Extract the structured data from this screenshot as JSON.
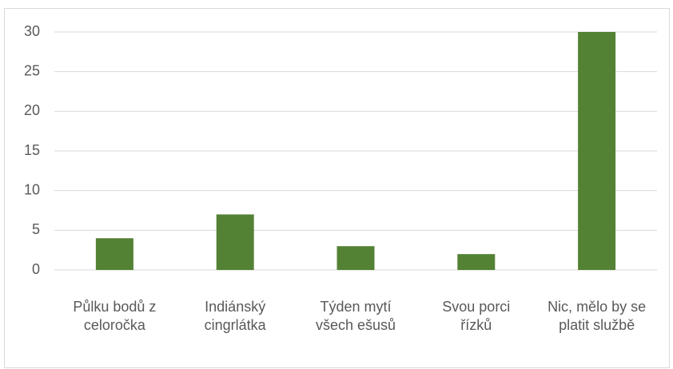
{
  "chart_data": {
    "type": "bar",
    "categories": [
      "Půlku bodů z celoročka",
      "Indiánský cingrlátka",
      "Týden mytí všech ešusů",
      "Svou porci řízků",
      "Nic, mělo by se platit službě"
    ],
    "values": [
      4,
      7,
      3,
      2,
      30
    ],
    "color": "#548235",
    "ylim": [
      0,
      30
    ],
    "yticks": [
      0,
      5,
      10,
      15,
      20,
      25,
      30
    ],
    "grid": true
  }
}
